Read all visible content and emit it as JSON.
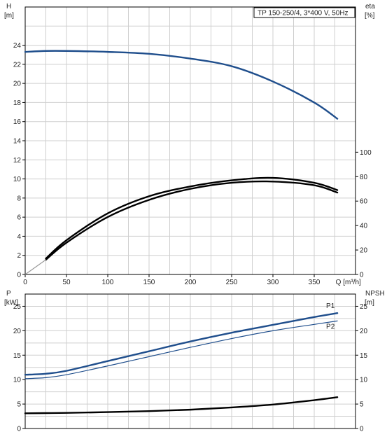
{
  "chart_data": [
    {
      "type": "line",
      "panel": "upper",
      "title": "TP 150-250/4, 3*400 V, 50Hz",
      "xlabel": "Q [m³/h]",
      "x_tick_labels": [
        "0",
        "50",
        "100",
        "150",
        "200",
        "250",
        "300",
        "350"
      ],
      "xlim": [
        0,
        400
      ],
      "left_axis": {
        "label_line1": "H",
        "label_line2": "[m]",
        "ylim": [
          0,
          28
        ],
        "ticks": [
          "0",
          "2",
          "4",
          "6",
          "8",
          "10",
          "12",
          "14",
          "16",
          "18",
          "20",
          "22",
          "24"
        ]
      },
      "right_axis": {
        "label_line1": "eta",
        "label_line2": "[%]",
        "ylim": [
          0,
          218.75
        ],
        "ticks": [
          "0",
          "20",
          "40",
          "60",
          "80",
          "100"
        ]
      },
      "series": [
        {
          "axis": "left",
          "color": "#1f4e8c",
          "x": [
            0,
            25,
            50,
            100,
            150,
            200,
            250,
            300,
            350,
            378
          ],
          "y": [
            23.3,
            23.4,
            23.4,
            23.3,
            23.1,
            22.6,
            21.8,
            20.2,
            18.0,
            16.3
          ]
        },
        {
          "axis": "left",
          "color": "#1f4e8c",
          "style": "thin",
          "x": [
            0,
            25
          ],
          "y": [
            23.3,
            23.4
          ]
        },
        {
          "axis": "right",
          "color": "#000000",
          "x": [
            25,
            50,
            100,
            150,
            200,
            250,
            300,
            350,
            378
          ],
          "y": [
            13,
            28,
            50,
            64,
            72,
            77,
            79,
            75,
            69
          ]
        },
        {
          "axis": "right",
          "color": "#000000",
          "x": [
            25,
            50,
            100,
            150,
            200,
            250,
            300,
            350,
            378
          ],
          "y": [
            12,
            26,
            47,
            61,
            70,
            75,
            76,
            73,
            67
          ]
        },
        {
          "axis": "right",
          "color": "#999999",
          "style": "thin",
          "x": [
            0,
            25
          ],
          "y": [
            0,
            12
          ]
        }
      ]
    },
    {
      "type": "line",
      "panel": "lower",
      "xlim": [
        0,
        400
      ],
      "left_axis": {
        "label_line1": "P",
        "label_line2": "[kW]",
        "ylim": [
          0,
          27.5
        ],
        "ticks": [
          "0",
          "5",
          "10",
          "15",
          "20",
          "25"
        ]
      },
      "right_axis": {
        "label_line1": "NPSH",
        "label_line2": "[m]",
        "ylim": [
          0,
          27.5
        ],
        "ticks": [
          "0",
          "5",
          "10",
          "15",
          "20",
          "25"
        ]
      },
      "series": [
        {
          "name": "P1",
          "axis": "left",
          "color": "#1f4e8c",
          "x": [
            0,
            25,
            50,
            100,
            150,
            200,
            250,
            300,
            350,
            378
          ],
          "y": [
            11.0,
            11.2,
            11.8,
            13.8,
            15.8,
            17.8,
            19.6,
            21.2,
            22.8,
            23.6
          ]
        },
        {
          "name": "P2",
          "axis": "left",
          "color": "#1f4e8c",
          "style": "thin",
          "x": [
            0,
            25,
            50,
            100,
            150,
            200,
            250,
            300,
            350,
            378
          ],
          "y": [
            10.2,
            10.4,
            11.0,
            12.8,
            14.7,
            16.6,
            18.4,
            20.0,
            21.3,
            22.0
          ]
        },
        {
          "axis": "right",
          "color": "#000000",
          "x": [
            0,
            25,
            50,
            100,
            150,
            200,
            250,
            300,
            350,
            378
          ],
          "y": [
            3.1,
            3.15,
            3.2,
            3.35,
            3.55,
            3.85,
            4.3,
            4.9,
            5.8,
            6.4
          ]
        }
      ]
    }
  ]
}
